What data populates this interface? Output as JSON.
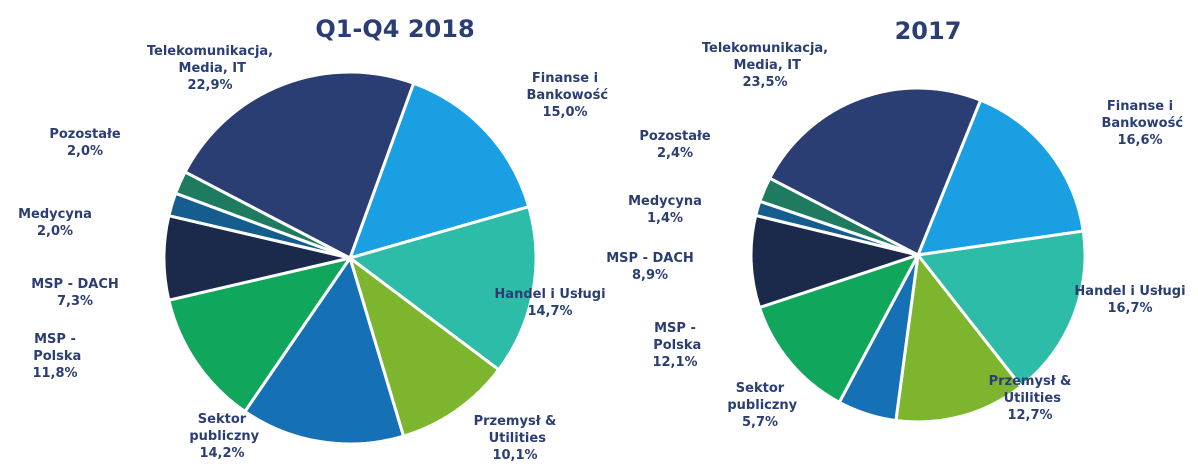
{
  "chart_data": [
    {
      "type": "pie",
      "title": "Q1-Q4 2018",
      "categories": [
        "Finanse i Bankowość",
        "Handel i Usługi",
        "Przemysł & Utilities",
        "Sektor publiczny",
        "MSP - Polska",
        "MSP - DACH",
        "Medycyna",
        "Pozostałe",
        "Telekomunikacja, Media, IT"
      ],
      "values": [
        15.0,
        14.7,
        10.1,
        14.2,
        11.8,
        7.3,
        2.0,
        2.0,
        22.9
      ],
      "value_labels": [
        "15,0%",
        "14,7%",
        "10,1%",
        "14,2%",
        "11,8%",
        "7,3%",
        "2,0%",
        "2,0%",
        "22,9%"
      ],
      "colors": [
        "#1aa0e2",
        "#2dbca8",
        "#7db62e",
        "#1670b6",
        "#10a75c",
        "#1b2a4b",
        "#155d8c",
        "#1e7b60",
        "#2b3e74"
      ]
    },
    {
      "type": "pie",
      "title": "2017",
      "categories": [
        "Finanse i Bankowość",
        "Handel i Usługi",
        "Przemysł & Utilities",
        "Sektor publiczny",
        "MSP - Polska",
        "MSP - DACH",
        "Medycyna",
        "Pozostałe",
        "Telekomunikacja, Media, IT"
      ],
      "values": [
        16.6,
        16.7,
        12.7,
        5.7,
        12.1,
        8.9,
        1.4,
        2.4,
        23.5
      ],
      "value_labels": [
        "16,6%",
        "16,7%",
        "12,7%",
        "5,7%",
        "12,1%",
        "8,9%",
        "1,4%",
        "2,4%",
        "23,5%"
      ],
      "colors": [
        "#1aa0e2",
        "#2dbca8",
        "#7db62e",
        "#1670b6",
        "#10a75c",
        "#1b2a4b",
        "#155d8c",
        "#1e7b60",
        "#2b3e74"
      ]
    }
  ]
}
